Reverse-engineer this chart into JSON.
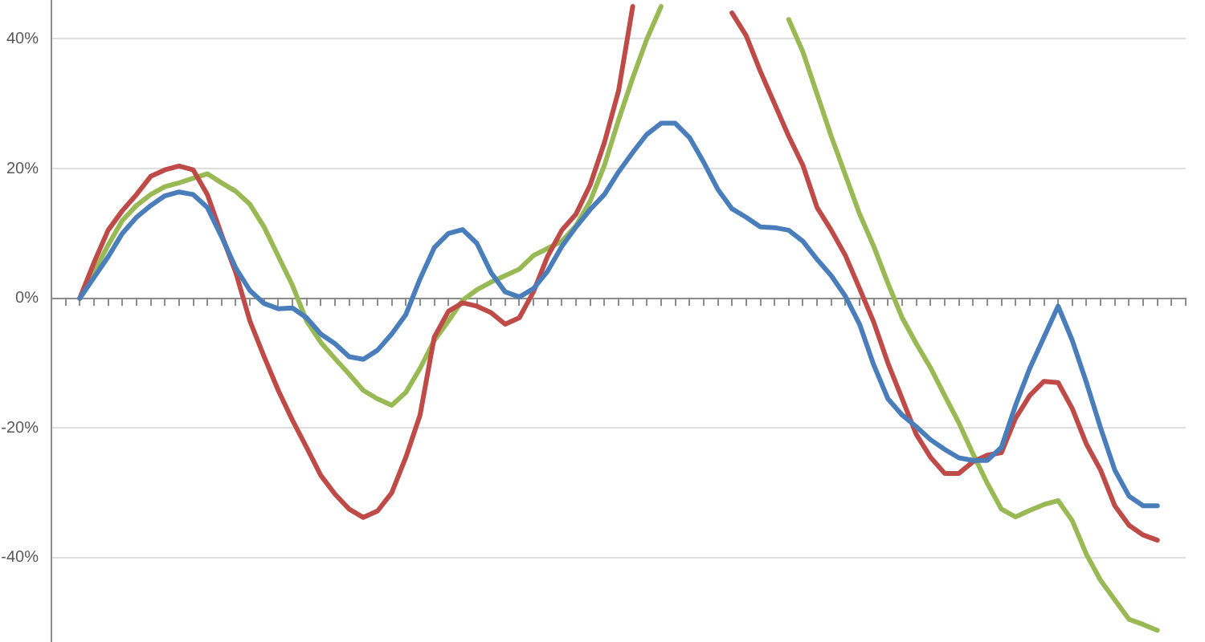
{
  "chart_data": {
    "type": "line",
    "categories": [
      null,
      null,
      null,
      null,
      null,
      null,
      null,
      null,
      null,
      null,
      null,
      null,
      null,
      null,
      null,
      null,
      null,
      null,
      null,
      null,
      null,
      null,
      null,
      null,
      null,
      null,
      null,
      null,
      null,
      null,
      null,
      null,
      null,
      null,
      null,
      null,
      null,
      null,
      null,
      null,
      null,
      null,
      null,
      null,
      null,
      null,
      null,
      null,
      null,
      null,
      null,
      null,
      null,
      null,
      null,
      null,
      null,
      null,
      null,
      null,
      null,
      null,
      null,
      null,
      null,
      null,
      null,
      null,
      null,
      null,
      null,
      null,
      null,
      null,
      null,
      null,
      null,
      null,
      null,
      null,
      null
    ],
    "series": [
      {
        "color": "#4a7ebb",
        "values": [
          null,
          null,
          0,
          3.2,
          6.4,
          10,
          12.5,
          14.3,
          15.8,
          16.4,
          16,
          14,
          9.5,
          4.7,
          1.2,
          -0.8,
          -1.6,
          -1.5,
          -3,
          -5.5,
          -7,
          -9,
          -9.4,
          -8,
          -5.5,
          -2.5,
          3,
          7.8,
          10,
          10.6,
          8.5,
          4,
          1,
          0.2,
          1.5,
          4.2,
          8,
          11,
          13.7,
          16,
          19.5,
          22.5,
          25.3,
          27,
          27,
          24.8,
          21,
          16.8,
          13.8,
          12.5,
          11,
          10.9,
          10.5,
          8.8,
          6,
          3.5,
          0.3,
          -4,
          -10.3,
          -15.5,
          -18,
          -19.8,
          -21.8,
          -23.3,
          -24.6,
          -25,
          -25,
          -23,
          -16.5,
          -10.8,
          -6,
          -1.2,
          -6.5,
          -13,
          -20,
          -26.5,
          -30.5,
          -32,
          -32,
          null,
          null
        ]
      },
      {
        "color": "#be4b48",
        "values": [
          null,
          null,
          0,
          5.5,
          10.5,
          13.5,
          16,
          18.8,
          19.8,
          20.4,
          19.8,
          16,
          9.8,
          4,
          -3.5,
          -9,
          -14.2,
          -18.8,
          -23,
          -27.3,
          -30.2,
          -32.5,
          -33.8,
          -32.8,
          -30,
          -24.5,
          -18,
          -6,
          -2,
          -0.7,
          -1.2,
          -2.2,
          -4,
          -3,
          1,
          6.5,
          10.5,
          13,
          17.5,
          24,
          32,
          45,
          null,
          null,
          null,
          null,
          null,
          null,
          44,
          40.5,
          35,
          30,
          25,
          20.5,
          14,
          10.5,
          6.6,
          1.5,
          -3.7,
          -10,
          -15.5,
          -21,
          -24.5,
          -27,
          -27,
          -25.2,
          -24.2,
          -23.8,
          -18.5,
          -15,
          -12.8,
          -13,
          -17,
          -22.5,
          -26.5,
          -32,
          -35,
          -36.5,
          -37.3,
          null,
          null
        ]
      },
      {
        "color": "#98b954",
        "values": [
          null,
          null,
          0,
          4,
          8.2,
          12,
          14.3,
          16,
          17.2,
          17.8,
          18.5,
          19.2,
          17.8,
          16.5,
          14.5,
          11,
          6.5,
          2,
          -3.5,
          -6.8,
          -9.3,
          -11.7,
          -14.2,
          -15.5,
          -16.5,
          -14.5,
          -10.8,
          -6.5,
          -3.5,
          -0.3,
          1.3,
          2.5,
          3.5,
          4.5,
          6.6,
          7.7,
          8.8,
          11.2,
          15,
          20.5,
          27.5,
          34,
          40,
          45,
          null,
          null,
          null,
          null,
          null,
          null,
          null,
          null,
          43,
          38,
          31.5,
          25,
          19,
          13,
          8,
          2.3,
          -3,
          -7,
          -10.7,
          -15,
          -19.2,
          -24,
          -28.5,
          -32.5,
          -33.7,
          -32.7,
          -31.8,
          -31.2,
          -34.3,
          -39.5,
          -43.5,
          -46.5,
          -49.5,
          -50.3,
          -51.2,
          null,
          null
        ]
      }
    ],
    "ylim": [
      -53,
      46
    ],
    "yticks": [
      {
        "value": -40,
        "label": "-40%"
      },
      {
        "value": -20,
        "label": "-20%"
      },
      {
        "value": 0,
        "label": "0%"
      },
      {
        "value": 20,
        "label": "20%"
      },
      {
        "value": 40,
        "label": "40%"
      }
    ],
    "grid": "y",
    "tick_labels": "y",
    "marker": "none",
    "line_style": "solid"
  }
}
